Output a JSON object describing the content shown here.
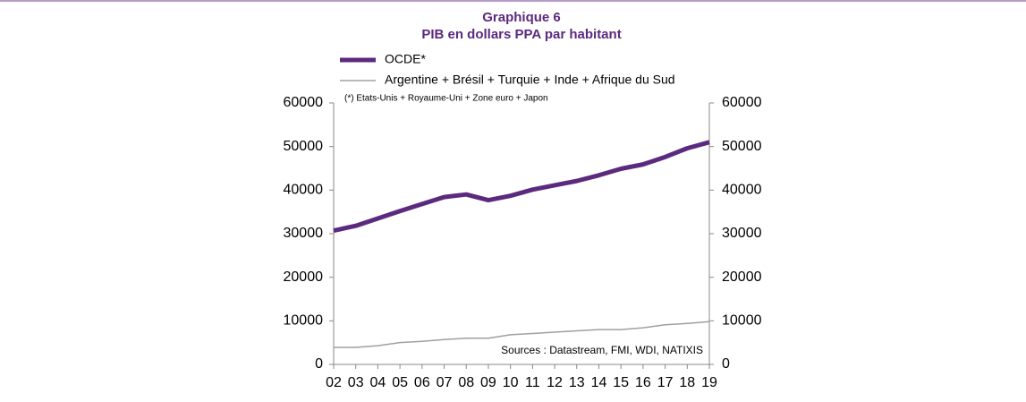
{
  "chart_data": {
    "type": "line",
    "title": "Graphique 6",
    "subtitle": "PIB en dollars PPA par habitant",
    "note": "(*) Etats-Unis + Royaume-Uni + Zone euro + Japon",
    "source": "Sources : Datastream,  FMI, WDI, NATIXIS",
    "categories": [
      "02",
      "03",
      "04",
      "05",
      "06",
      "07",
      "08",
      "09",
      "10",
      "11",
      "12",
      "13",
      "14",
      "15",
      "16",
      "17",
      "18",
      "19"
    ],
    "series": [
      {
        "name": "OCDE*",
        "color": "#5b2a7e",
        "values": [
          30700,
          31800,
          33500,
          35200,
          36800,
          38400,
          39000,
          37700,
          38700,
          40100,
          41100,
          42100,
          43400,
          44900,
          45900,
          47600,
          49600,
          51000
        ]
      },
      {
        "name": "Argentine + Brésil + Turquie + Inde + Afrique du Sud",
        "color": "#a0a0a0",
        "values": [
          3900,
          3900,
          4300,
          5000,
          5300,
          5700,
          6000,
          6000,
          6800,
          7100,
          7400,
          7700,
          8000,
          8000,
          8400,
          9100,
          9400,
          9800
        ]
      }
    ],
    "ylim": [
      0,
      60000
    ],
    "yticks": [
      0,
      10000,
      20000,
      30000,
      40000,
      50000,
      60000
    ],
    "y2lim": [
      0,
      60000
    ],
    "y2ticks": [
      0,
      10000,
      20000,
      30000,
      40000,
      50000,
      60000
    ],
    "grid": false
  }
}
